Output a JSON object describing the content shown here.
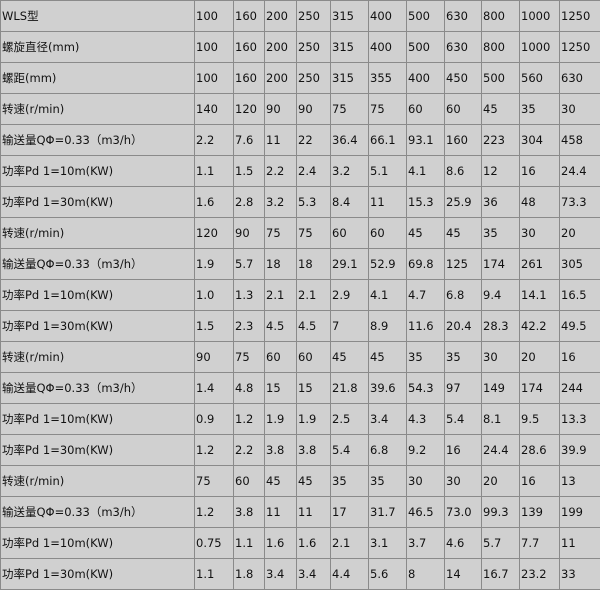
{
  "table": {
    "rows": [
      {
        "label": "WLS型",
        "values": [
          "100",
          "160",
          "200",
          "250",
          "315",
          "400",
          "500",
          "630",
          "800",
          "1000",
          "1250"
        ]
      },
      {
        "label": "螺旋直径(mm)",
        "values": [
          "100",
          "160",
          "200",
          "250",
          "315",
          "400",
          "500",
          "630",
          "800",
          "1000",
          "1250"
        ]
      },
      {
        "label": "螺距(mm)",
        "values": [
          "100",
          "160",
          "200",
          "250",
          "315",
          "355",
          "400",
          "450",
          "500",
          "560",
          "630"
        ]
      },
      {
        "label": "转速(r/min)",
        "values": [
          "140",
          "120",
          "90",
          "90",
          "75",
          "75",
          "60",
          "60",
          "45",
          "35",
          "30"
        ]
      },
      {
        "label": "输送量QΦ=0.33（m3/h）",
        "values": [
          "2.2",
          "7.6",
          "11",
          "22",
          "36.4",
          "66.1",
          "93.1",
          "160",
          "223",
          "304",
          "458"
        ]
      },
      {
        "label": "功率Pd 1=10m(KW)",
        "values": [
          "1.1",
          "1.5",
          "2.2",
          "2.4",
          "3.2",
          "5.1",
          "4.1",
          "8.6",
          "12",
          "16",
          "24.4"
        ]
      },
      {
        "label": "功率Pd 1=30m(KW)",
        "values": [
          "1.6",
          "2.8",
          "3.2",
          "5.3",
          "8.4",
          "11",
          "15.3",
          "25.9",
          "36",
          "48",
          "73.3"
        ]
      },
      {
        "label": "转速(r/min)",
        "values": [
          "120",
          "90",
          "75",
          "75",
          "60",
          "60",
          "45",
          "45",
          "35",
          "30",
          "20"
        ]
      },
      {
        "label": "输送量QΦ=0.33（m3/h）",
        "values": [
          "1.9",
          "5.7",
          "18",
          "18",
          "29.1",
          "52.9",
          "69.8",
          "125",
          "174",
          "261",
          "305"
        ]
      },
      {
        "label": "功率Pd 1=10m(KW)",
        "values": [
          "1.0",
          "1.3",
          "2.1",
          "2.1",
          "2.9",
          "4.1",
          "4.7",
          "6.8",
          "9.4",
          "14.1",
          "16.5"
        ]
      },
      {
        "label": "功率Pd 1=30m(KW)",
        "values": [
          "1.5",
          "2.3",
          "4.5",
          "4.5",
          "7",
          "8.9",
          "11.6",
          "20.4",
          "28.3",
          "42.2",
          "49.5"
        ]
      },
      {
        "label": "转速(r/min)",
        "values": [
          "90",
          "75",
          "60",
          "60",
          "45",
          "45",
          "35",
          "35",
          "30",
          "20",
          "16"
        ]
      },
      {
        "label": "输送量QΦ=0.33（m3/h）",
        "values": [
          "1.4",
          "4.8",
          "15",
          "15",
          "21.8",
          "39.6",
          "54.3",
          "97",
          "149",
          "174",
          "244"
        ]
      },
      {
        "label": "功率Pd 1=10m(KW)",
        "values": [
          "0.9",
          "1.2",
          "1.9",
          "1.9",
          "2.5",
          "3.4",
          "4.3",
          "5.4",
          "8.1",
          "9.5",
          "13.3"
        ]
      },
      {
        "label": "功率Pd 1=30m(KW)",
        "values": [
          "1.2",
          "2.2",
          "3.8",
          "3.8",
          "5.4",
          "6.8",
          "9.2",
          "16",
          "24.4",
          "28.6",
          "39.9"
        ]
      },
      {
        "label": "转速(r/min)",
        "values": [
          "75",
          "60",
          "45",
          "45",
          "35",
          "35",
          "30",
          "30",
          "20",
          "16",
          "13"
        ]
      },
      {
        "label": "输送量QΦ=0.33（m3/h）",
        "values": [
          "1.2",
          "3.8",
          "11",
          "11",
          "17",
          "31.7",
          "46.5",
          "73.0",
          "99.3",
          "139",
          "199"
        ]
      },
      {
        "label": "功率Pd 1=10m(KW)",
        "values": [
          "0.75",
          "1.1",
          "1.6",
          "1.6",
          "2.1",
          "3.1",
          "3.7",
          "4.6",
          "5.7",
          "7.7",
          "11"
        ]
      },
      {
        "label": "功率Pd 1=30m(KW)",
        "values": [
          "1.1",
          "1.8",
          "3.4",
          "3.4",
          "4.4",
          "5.6",
          "8",
          "14",
          "16.7",
          "23.2",
          "33"
        ]
      }
    ]
  }
}
